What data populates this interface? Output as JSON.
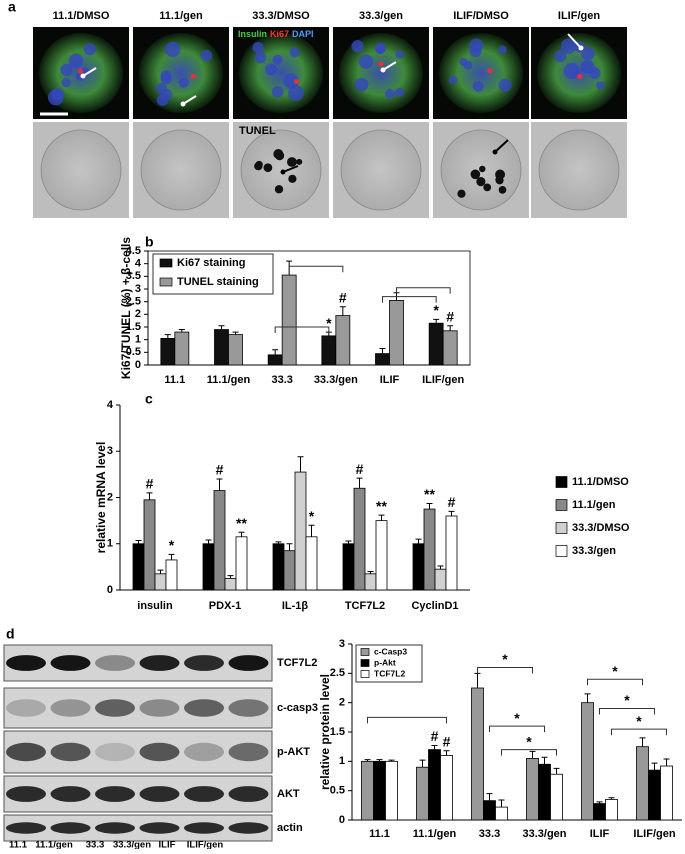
{
  "panel_labels": [
    "a",
    "b",
    "c",
    "d"
  ],
  "images": {
    "column_labels": [
      "11.1/DMSO",
      "11.1/gen",
      "33.3/DMSO",
      "33.3/gen",
      "ILIF/DMSO",
      "ILIF/gen"
    ],
    "stain_labels": [
      "Insulin",
      "Ki67",
      "DAPI"
    ],
    "tunel_label": "TUNEL"
  },
  "blot": {
    "row_labels": [
      "TCF7L2",
      "c-casp3",
      "p-AKT",
      "AKT",
      "actin"
    ],
    "lane_labels": [
      "11.1",
      "11.1/gen",
      "33.3",
      "33.3/gen",
      "ILIF",
      "ILIF/gen"
    ]
  },
  "chart_data": [
    {
      "type": "bar",
      "ylabel": "Ki67/TUNEL (%) + β-cells",
      "categories": [
        "11.1",
        "11.1/gen",
        "33.3",
        "33.3/gen",
        "ILIF",
        "ILIF/gen"
      ],
      "series": [
        {
          "name": "Ki67 staining",
          "color": "#111111",
          "values": [
            1.05,
            1.4,
            0.4,
            1.15,
            0.45,
            1.65
          ],
          "errors": [
            0.15,
            0.15,
            0.2,
            0.15,
            0.2,
            0.15
          ],
          "annotations": [
            null,
            null,
            null,
            "*",
            null,
            "*"
          ]
        },
        {
          "name": "TUNEL staining",
          "color": "#999999",
          "values": [
            1.3,
            1.2,
            3.55,
            1.95,
            2.55,
            1.35
          ],
          "errors": [
            0.1,
            0.1,
            0.55,
            0.35,
            0.3,
            0.2
          ],
          "annotations": [
            null,
            null,
            null,
            "#",
            null,
            "#"
          ]
        }
      ],
      "ylim": [
        0,
        4.5
      ],
      "yticks": [
        0,
        0.5,
        1,
        1.5,
        2,
        2.5,
        3,
        3.5,
        4,
        4.5
      ]
    },
    {
      "type": "bar",
      "ylabel": "relative mRNA level",
      "categories": [
        "insulin",
        "PDX-1",
        "IL-1β",
        "TCF7L2",
        "CyclinD1"
      ],
      "series": [
        {
          "name": "11.1/DMSO",
          "color": "#000000",
          "values": [
            1,
            1,
            1,
            1,
            1
          ],
          "errors": [
            0.07,
            0.08,
            0.04,
            0.06,
            0.1
          ],
          "annotations": [
            null,
            null,
            null,
            null,
            null
          ]
        },
        {
          "name": "11.1/gen",
          "color": "#888888",
          "values": [
            1.95,
            2.15,
            0.85,
            2.2,
            1.75
          ],
          "errors": [
            0.15,
            0.25,
            0.15,
            0.22,
            0.12
          ],
          "annotations": [
            "#",
            "#",
            null,
            "#",
            "**"
          ]
        },
        {
          "name": "33.3/DMSO",
          "color": "#d0d0d0",
          "values": [
            0.35,
            0.25,
            2.55,
            0.35,
            0.45
          ],
          "errors": [
            0.08,
            0.06,
            0.33,
            0.05,
            0.07
          ],
          "annotations": [
            null,
            null,
            null,
            null,
            null
          ]
        },
        {
          "name": "33.3/gen",
          "color": "#ffffff",
          "values": [
            0.65,
            1.15,
            1.15,
            1.5,
            1.6
          ],
          "errors": [
            0.12,
            0.1,
            0.25,
            0.12,
            0.1
          ],
          "annotations": [
            "*",
            "**",
            "*",
            "**",
            "#"
          ]
        }
      ],
      "ylim": [
        0,
        4
      ],
      "yticks": [
        0,
        1,
        2,
        3,
        4
      ]
    },
    {
      "type": "bar",
      "ylabel": "relative protein level",
      "categories": [
        "11.1",
        "11.1/gen",
        "33.3",
        "33.3/gen",
        "ILIF",
        "ILIF/gen"
      ],
      "series": [
        {
          "name": "c-Casp3",
          "color": "#999999",
          "values": [
            1,
            0.9,
            2.25,
            1.05,
            2.0,
            1.25
          ],
          "errors": [
            0.03,
            0.12,
            0.25,
            0.12,
            0.15,
            0.15
          ],
          "annotations": [
            null,
            null,
            null,
            null,
            null,
            null
          ]
        },
        {
          "name": "p-Akt",
          "color": "#000000",
          "values": [
            1,
            1.2,
            0.33,
            0.95,
            0.28,
            0.85
          ],
          "errors": [
            0.03,
            0.07,
            0.12,
            0.12,
            0.03,
            0.12
          ],
          "annotations": [
            null,
            "#",
            null,
            null,
            null,
            null
          ]
        },
        {
          "name": "TCF7L2",
          "color": "#ffffff",
          "values": [
            1,
            1.1,
            0.22,
            0.78,
            0.35,
            0.92
          ],
          "errors": [
            0.02,
            0.08,
            0.12,
            0.1,
            0.03,
            0.12
          ],
          "annotations": [
            null,
            "#",
            null,
            null,
            null,
            null
          ]
        }
      ],
      "bracket_labels": [
        "*",
        "*",
        "*",
        "*",
        "*",
        "*"
      ],
      "ylim": [
        0,
        3
      ],
      "yticks": [
        0,
        0.5,
        1,
        1.5,
        2,
        2.5,
        3
      ]
    }
  ]
}
